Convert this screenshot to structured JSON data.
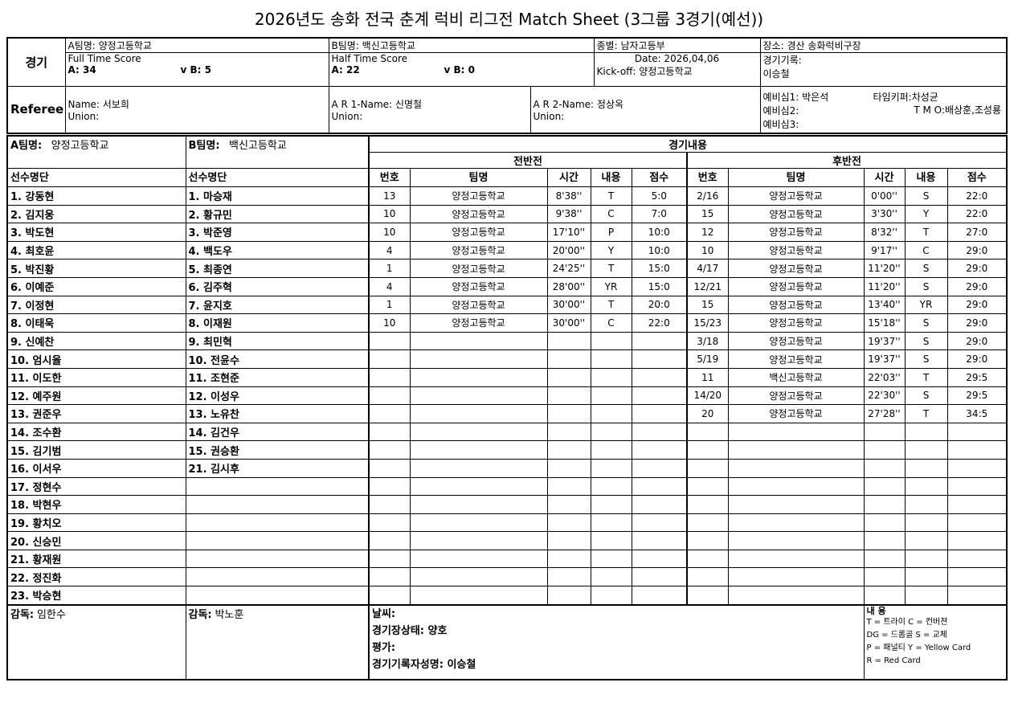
{
  "title": "2026년도 송화 전국 춘계 럭비 리그전  Match Sheet (3그룹 3경기(예선))",
  "header": {
    "match_label": "경기",
    "team_a": "A팀명:  양정고등학교",
    "team_b": "B팀명:  백신고등학교",
    "category": "종별:  남자고등부",
    "venue": "장소:  경산 송화럭비구장",
    "full_time_label": "Full Time Score",
    "full_time_a": "A: 34",
    "full_time_b": "v  B: 5",
    "half_time_label": "Half Time Score",
    "half_time_a": "A: 22",
    "half_time_b": "v  B: 0",
    "date": "Date: 2026,04,06",
    "kickoff": "Kick-off: 양정고등학교",
    "recorder_label": "경기기록:",
    "recorder": "이승철",
    "referee_label": "Referee",
    "referee_name": "Name:  서보희",
    "referee_union": "Union:",
    "ar1_name": "A R 1-Name:  신명철",
    "ar1_union": "Union:",
    "ar2_name": "A R 2-Name:  정상옥",
    "ar2_union": "Union:",
    "reserve1": "예비심1: 박은석",
    "reserve2": "예비심2:",
    "reserve3": "예비심3:",
    "timekeeper": "타임키퍼:차성균",
    "tmo": "T M O:배상훈,조성룡"
  },
  "main": {
    "team_a_label": "A팀명:",
    "team_a": "양정고등학교",
    "team_b_label": "B팀명:",
    "team_b": "백신고등학교",
    "content_label": "경기내용",
    "first_half": "전반전",
    "second_half": "후반전",
    "roster_label": "선수명단",
    "cols": [
      "번호",
      "팀명",
      "시간",
      "내용",
      "점수"
    ],
    "players_a": [
      "1. 강동현",
      "2. 김지웅",
      "3. 박도현",
      "4. 최호윤",
      "5. 박진황",
      "6. 이예준",
      "7. 이정현",
      "8. 이태욱",
      "9. 신예찬",
      "10. 엄시율",
      "11. 이도한",
      "12. 예주원",
      "13. 권준우",
      "14. 조수환",
      "15. 김기범",
      "16. 이서우",
      "17. 정현수",
      "18. 박현우",
      "19. 황치오",
      "20. 신승민",
      "21. 황재원",
      "22. 정진화",
      "23. 박승현"
    ],
    "players_b": [
      "1. 마승재",
      "2. 황규민",
      "3. 박준영",
      "4. 백도우",
      "5. 최종연",
      "6. 김주혁",
      "7. 윤지호",
      "8. 이재원",
      "9. 최민혁",
      "10. 전윤수",
      "11. 조현준",
      "12. 이성우",
      "13. 노유찬",
      "14. 김건우",
      "15. 권승환",
      "21. 김시후"
    ],
    "first_half_events": [
      [
        "13",
        "양정고등학교",
        "8'38''",
        "T",
        "5:0"
      ],
      [
        "10",
        "양정고등학교",
        "9'38''",
        "C",
        "7:0"
      ],
      [
        "10",
        "양정고등학교",
        "17'10''",
        "P",
        "10:0"
      ],
      [
        "4",
        "양정고등학교",
        "20'00''",
        "Y",
        "10:0"
      ],
      [
        "1",
        "양정고등학교",
        "24'25''",
        "T",
        "15:0"
      ],
      [
        "4",
        "양정고등학교",
        "28'00''",
        "YR",
        "15:0"
      ],
      [
        "1",
        "양정고등학교",
        "30'00''",
        "T",
        "20:0"
      ],
      [
        "10",
        "양정고등학교",
        "30'00''",
        "C",
        "22:0"
      ]
    ],
    "second_half_events": [
      [
        "2/16",
        "양정고등학교",
        "0'00''",
        "S",
        "22:0"
      ],
      [
        "15",
        "양정고등학교",
        "3'30''",
        "Y",
        "22:0"
      ],
      [
        "12",
        "양정고등학교",
        "8'32''",
        "T",
        "27:0"
      ],
      [
        "10",
        "양정고등학교",
        "9'17''",
        "C",
        "29:0"
      ],
      [
        "4/17",
        "양정고등학교",
        "11'20''",
        "S",
        "29:0"
      ],
      [
        "12/21",
        "양정고등학교",
        "11'20''",
        "S",
        "29:0"
      ],
      [
        "15",
        "양정고등학교",
        "13'40''",
        "YR",
        "29:0"
      ],
      [
        "15/23",
        "양정고등학교",
        "15'18''",
        "S",
        "29:0"
      ],
      [
        "3/18",
        "양정고등학교",
        "19'37''",
        "S",
        "29:0"
      ],
      [
        "5/19",
        "양정고등학교",
        "19'37''",
        "S",
        "29:0"
      ],
      [
        "11",
        "백신고등학교",
        "22'03''",
        "T",
        "29:5"
      ],
      [
        "14/20",
        "양정고등학교",
        "22'30''",
        "S",
        "29:5"
      ],
      [
        "20",
        "양정고등학교",
        "27'28''",
        "T",
        "34:5"
      ]
    ]
  },
  "footer": {
    "coach_a_label": "감독:",
    "coach_a": "임한수",
    "coach_b_label": "감독:",
    "coach_b": "박노훈",
    "weather": "날씨:",
    "field_condition": "경기장상태:  양호",
    "evaluation": "평가:",
    "recorder_sign": "경기기록자성명:    이승철",
    "legend_title": "내  용",
    "legend_1": "T = 트라이     C = 컨버젼",
    "legend_2": "DG = 드롭골    S = 교체",
    "legend_3": "P = 패널티  Y = Yellow Card",
    "legend_4": "R = Red Card"
  }
}
